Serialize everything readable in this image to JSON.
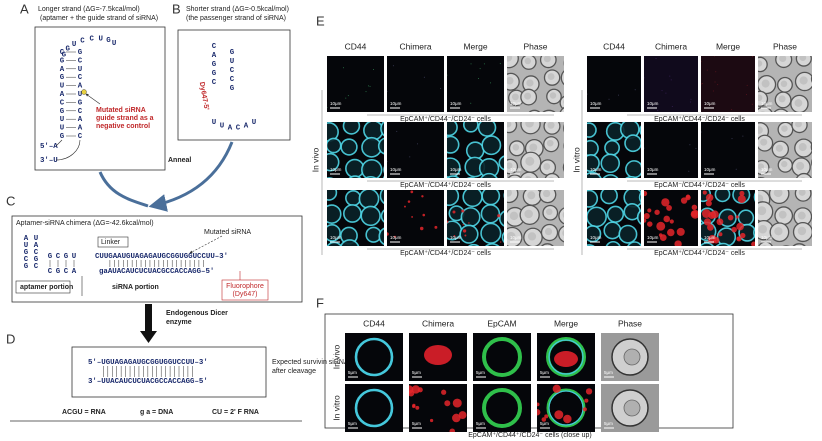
{
  "panel_a": {
    "label": "A",
    "title": "Longer strand (ΔG=-7.5kcal/mol)",
    "subtitle": "(aptamer + the guide strand of siRNA)",
    "end_5": "5'–A",
    "end_3": "3'–U",
    "note": [
      "Mutated siRNA",
      "guide strand as a",
      "negative control"
    ],
    "stem_left": [
      "C",
      "G",
      "A",
      "G",
      "U",
      "A",
      "C",
      "G",
      "U",
      "U",
      "G"
    ],
    "stem_right": [
      "G",
      "C",
      "U",
      "C",
      "A",
      "U",
      "G",
      "C",
      "A",
      "A",
      "C"
    ],
    "loop": [
      "U",
      "G",
      "U",
      "C",
      "C",
      "U",
      "G",
      "G"
    ]
  },
  "panel_b": {
    "label": "B",
    "title": "Shorter strand (ΔG=-0.5kcal/mol)",
    "subtitle": "(the passenger strand of siRNA)",
    "fluorophore": "Dy647-5'",
    "stem_left": [
      "C",
      "A",
      "G",
      "G",
      "C"
    ],
    "stem_right": [
      "G",
      "U",
      "C",
      "C",
      "G"
    ],
    "loop": [
      "U",
      "U",
      "A",
      "C",
      "A",
      "U"
    ]
  },
  "anneal": "Anneal",
  "panel_c": {
    "label": "C",
    "title": "Aptamer-siRNA chimera (ΔG=-42.6kcal/mol)",
    "linker": "Linker",
    "mutated": "Mutated siRNA",
    "top_strand": "CUUGAAUGUAGAGAUGCGGUGGUCCUU–3'",
    "bottom_strand": "gaAUACAUCUCUACGCCACCAGG–5'",
    "aptamer_left": [
      "A",
      "U",
      "G",
      "C",
      "G"
    ],
    "aptamer_right": [
      "U",
      "A",
      "C",
      "G",
      "C"
    ],
    "aptamer_top": [
      "G",
      "C",
      "G",
      "U"
    ],
    "aptamer_bottom": [
      "C",
      "G",
      "C",
      "A"
    ],
    "aptamer_portion": "aptamer portion",
    "sirna_portion": "siRNA portion",
    "fluorophore": [
      "Fluorophore",
      "(Dy647)"
    ]
  },
  "dicer": [
    "Endogenous Dicer",
    "enzyme"
  ],
  "panel_d": {
    "label": "D",
    "top_strand": "5'–UGUAGAGAUGCGGUGGUCCUU–3'",
    "bottom_strand": "3'–UUACAUCUCUACGCCACCAGG–5'",
    "note": [
      "Expected survivin siRNA",
      "after cleavage"
    ]
  },
  "legend": [
    "ACGU = RNA",
    "g a = DNA",
    "CU = 2' F RNA"
  ],
  "panel_e": {
    "label": "E",
    "columns": [
      "CD44",
      "Chimera",
      "Merge",
      "Phase"
    ],
    "groups": [
      "In vivo",
      "In vitro"
    ],
    "rows": [
      "EpCAM⁺/CD44⁻/CD24⁻ cells",
      "EpCAM⁻/CD44⁺/CD24⁻ cells",
      "EpCAM⁺/CD44⁺/CD24⁻ cells"
    ],
    "scale_bar": "10μm"
  },
  "panel_f": {
    "label": "F",
    "columns": [
      "CD44",
      "Chimera",
      "EpCAM",
      "Merge",
      "Phase"
    ],
    "rows": [
      "In vivo",
      "In vitro"
    ],
    "scale_bar": "5μm",
    "caption": "EpCAM⁺/CD44⁺/CD24⁻ cells (close up)"
  }
}
